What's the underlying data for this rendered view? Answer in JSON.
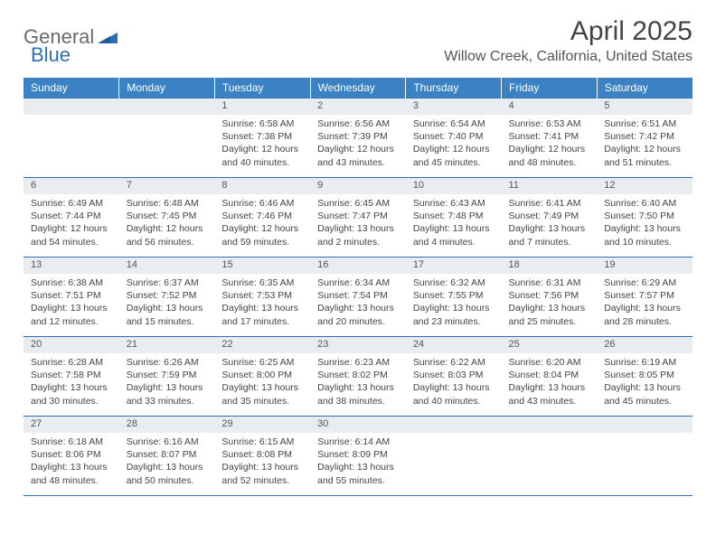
{
  "logo": {
    "part1": "General",
    "part2": "Blue"
  },
  "title": "April 2025",
  "location": "Willow Creek, California, United States",
  "headers": [
    "Sunday",
    "Monday",
    "Tuesday",
    "Wednesday",
    "Thursday",
    "Friday",
    "Saturday"
  ],
  "colors": {
    "header_bg": "#3a82c4",
    "header_fg": "#ffffff",
    "daynum_bg": "#e9edf0",
    "rule": "#2f6fb4",
    "text": "#444444",
    "logo_gray": "#6a6a6a",
    "logo_blue": "#2f6fb4"
  },
  "typography": {
    "title_fontsize": 30,
    "location_fontsize": 16,
    "header_fontsize": 12,
    "daynum_fontsize": 11,
    "body_fontsize": 10.5,
    "logo_fontsize": 22
  },
  "weeks": [
    [
      {
        "n": "",
        "sr": "",
        "ss": "",
        "dl1": "",
        "dl2": ""
      },
      {
        "n": "",
        "sr": "",
        "ss": "",
        "dl1": "",
        "dl2": ""
      },
      {
        "n": "1",
        "sr": "Sunrise: 6:58 AM",
        "ss": "Sunset: 7:38 PM",
        "dl1": "Daylight: 12 hours",
        "dl2": "and 40 minutes."
      },
      {
        "n": "2",
        "sr": "Sunrise: 6:56 AM",
        "ss": "Sunset: 7:39 PM",
        "dl1": "Daylight: 12 hours",
        "dl2": "and 43 minutes."
      },
      {
        "n": "3",
        "sr": "Sunrise: 6:54 AM",
        "ss": "Sunset: 7:40 PM",
        "dl1": "Daylight: 12 hours",
        "dl2": "and 45 minutes."
      },
      {
        "n": "4",
        "sr": "Sunrise: 6:53 AM",
        "ss": "Sunset: 7:41 PM",
        "dl1": "Daylight: 12 hours",
        "dl2": "and 48 minutes."
      },
      {
        "n": "5",
        "sr": "Sunrise: 6:51 AM",
        "ss": "Sunset: 7:42 PM",
        "dl1": "Daylight: 12 hours",
        "dl2": "and 51 minutes."
      }
    ],
    [
      {
        "n": "6",
        "sr": "Sunrise: 6:49 AM",
        "ss": "Sunset: 7:44 PM",
        "dl1": "Daylight: 12 hours",
        "dl2": "and 54 minutes."
      },
      {
        "n": "7",
        "sr": "Sunrise: 6:48 AM",
        "ss": "Sunset: 7:45 PM",
        "dl1": "Daylight: 12 hours",
        "dl2": "and 56 minutes."
      },
      {
        "n": "8",
        "sr": "Sunrise: 6:46 AM",
        "ss": "Sunset: 7:46 PM",
        "dl1": "Daylight: 12 hours",
        "dl2": "and 59 minutes."
      },
      {
        "n": "9",
        "sr": "Sunrise: 6:45 AM",
        "ss": "Sunset: 7:47 PM",
        "dl1": "Daylight: 13 hours",
        "dl2": "and 2 minutes."
      },
      {
        "n": "10",
        "sr": "Sunrise: 6:43 AM",
        "ss": "Sunset: 7:48 PM",
        "dl1": "Daylight: 13 hours",
        "dl2": "and 4 minutes."
      },
      {
        "n": "11",
        "sr": "Sunrise: 6:41 AM",
        "ss": "Sunset: 7:49 PM",
        "dl1": "Daylight: 13 hours",
        "dl2": "and 7 minutes."
      },
      {
        "n": "12",
        "sr": "Sunrise: 6:40 AM",
        "ss": "Sunset: 7:50 PM",
        "dl1": "Daylight: 13 hours",
        "dl2": "and 10 minutes."
      }
    ],
    [
      {
        "n": "13",
        "sr": "Sunrise: 6:38 AM",
        "ss": "Sunset: 7:51 PM",
        "dl1": "Daylight: 13 hours",
        "dl2": "and 12 minutes."
      },
      {
        "n": "14",
        "sr": "Sunrise: 6:37 AM",
        "ss": "Sunset: 7:52 PM",
        "dl1": "Daylight: 13 hours",
        "dl2": "and 15 minutes."
      },
      {
        "n": "15",
        "sr": "Sunrise: 6:35 AM",
        "ss": "Sunset: 7:53 PM",
        "dl1": "Daylight: 13 hours",
        "dl2": "and 17 minutes."
      },
      {
        "n": "16",
        "sr": "Sunrise: 6:34 AM",
        "ss": "Sunset: 7:54 PM",
        "dl1": "Daylight: 13 hours",
        "dl2": "and 20 minutes."
      },
      {
        "n": "17",
        "sr": "Sunrise: 6:32 AM",
        "ss": "Sunset: 7:55 PM",
        "dl1": "Daylight: 13 hours",
        "dl2": "and 23 minutes."
      },
      {
        "n": "18",
        "sr": "Sunrise: 6:31 AM",
        "ss": "Sunset: 7:56 PM",
        "dl1": "Daylight: 13 hours",
        "dl2": "and 25 minutes."
      },
      {
        "n": "19",
        "sr": "Sunrise: 6:29 AM",
        "ss": "Sunset: 7:57 PM",
        "dl1": "Daylight: 13 hours",
        "dl2": "and 28 minutes."
      }
    ],
    [
      {
        "n": "20",
        "sr": "Sunrise: 6:28 AM",
        "ss": "Sunset: 7:58 PM",
        "dl1": "Daylight: 13 hours",
        "dl2": "and 30 minutes."
      },
      {
        "n": "21",
        "sr": "Sunrise: 6:26 AM",
        "ss": "Sunset: 7:59 PM",
        "dl1": "Daylight: 13 hours",
        "dl2": "and 33 minutes."
      },
      {
        "n": "22",
        "sr": "Sunrise: 6:25 AM",
        "ss": "Sunset: 8:00 PM",
        "dl1": "Daylight: 13 hours",
        "dl2": "and 35 minutes."
      },
      {
        "n": "23",
        "sr": "Sunrise: 6:23 AM",
        "ss": "Sunset: 8:02 PM",
        "dl1": "Daylight: 13 hours",
        "dl2": "and 38 minutes."
      },
      {
        "n": "24",
        "sr": "Sunrise: 6:22 AM",
        "ss": "Sunset: 8:03 PM",
        "dl1": "Daylight: 13 hours",
        "dl2": "and 40 minutes."
      },
      {
        "n": "25",
        "sr": "Sunrise: 6:20 AM",
        "ss": "Sunset: 8:04 PM",
        "dl1": "Daylight: 13 hours",
        "dl2": "and 43 minutes."
      },
      {
        "n": "26",
        "sr": "Sunrise: 6:19 AM",
        "ss": "Sunset: 8:05 PM",
        "dl1": "Daylight: 13 hours",
        "dl2": "and 45 minutes."
      }
    ],
    [
      {
        "n": "27",
        "sr": "Sunrise: 6:18 AM",
        "ss": "Sunset: 8:06 PM",
        "dl1": "Daylight: 13 hours",
        "dl2": "and 48 minutes."
      },
      {
        "n": "28",
        "sr": "Sunrise: 6:16 AM",
        "ss": "Sunset: 8:07 PM",
        "dl1": "Daylight: 13 hours",
        "dl2": "and 50 minutes."
      },
      {
        "n": "29",
        "sr": "Sunrise: 6:15 AM",
        "ss": "Sunset: 8:08 PM",
        "dl1": "Daylight: 13 hours",
        "dl2": "and 52 minutes."
      },
      {
        "n": "30",
        "sr": "Sunrise: 6:14 AM",
        "ss": "Sunset: 8:09 PM",
        "dl1": "Daylight: 13 hours",
        "dl2": "and 55 minutes."
      },
      {
        "n": "",
        "sr": "",
        "ss": "",
        "dl1": "",
        "dl2": ""
      },
      {
        "n": "",
        "sr": "",
        "ss": "",
        "dl1": "",
        "dl2": ""
      },
      {
        "n": "",
        "sr": "",
        "ss": "",
        "dl1": "",
        "dl2": ""
      }
    ]
  ]
}
